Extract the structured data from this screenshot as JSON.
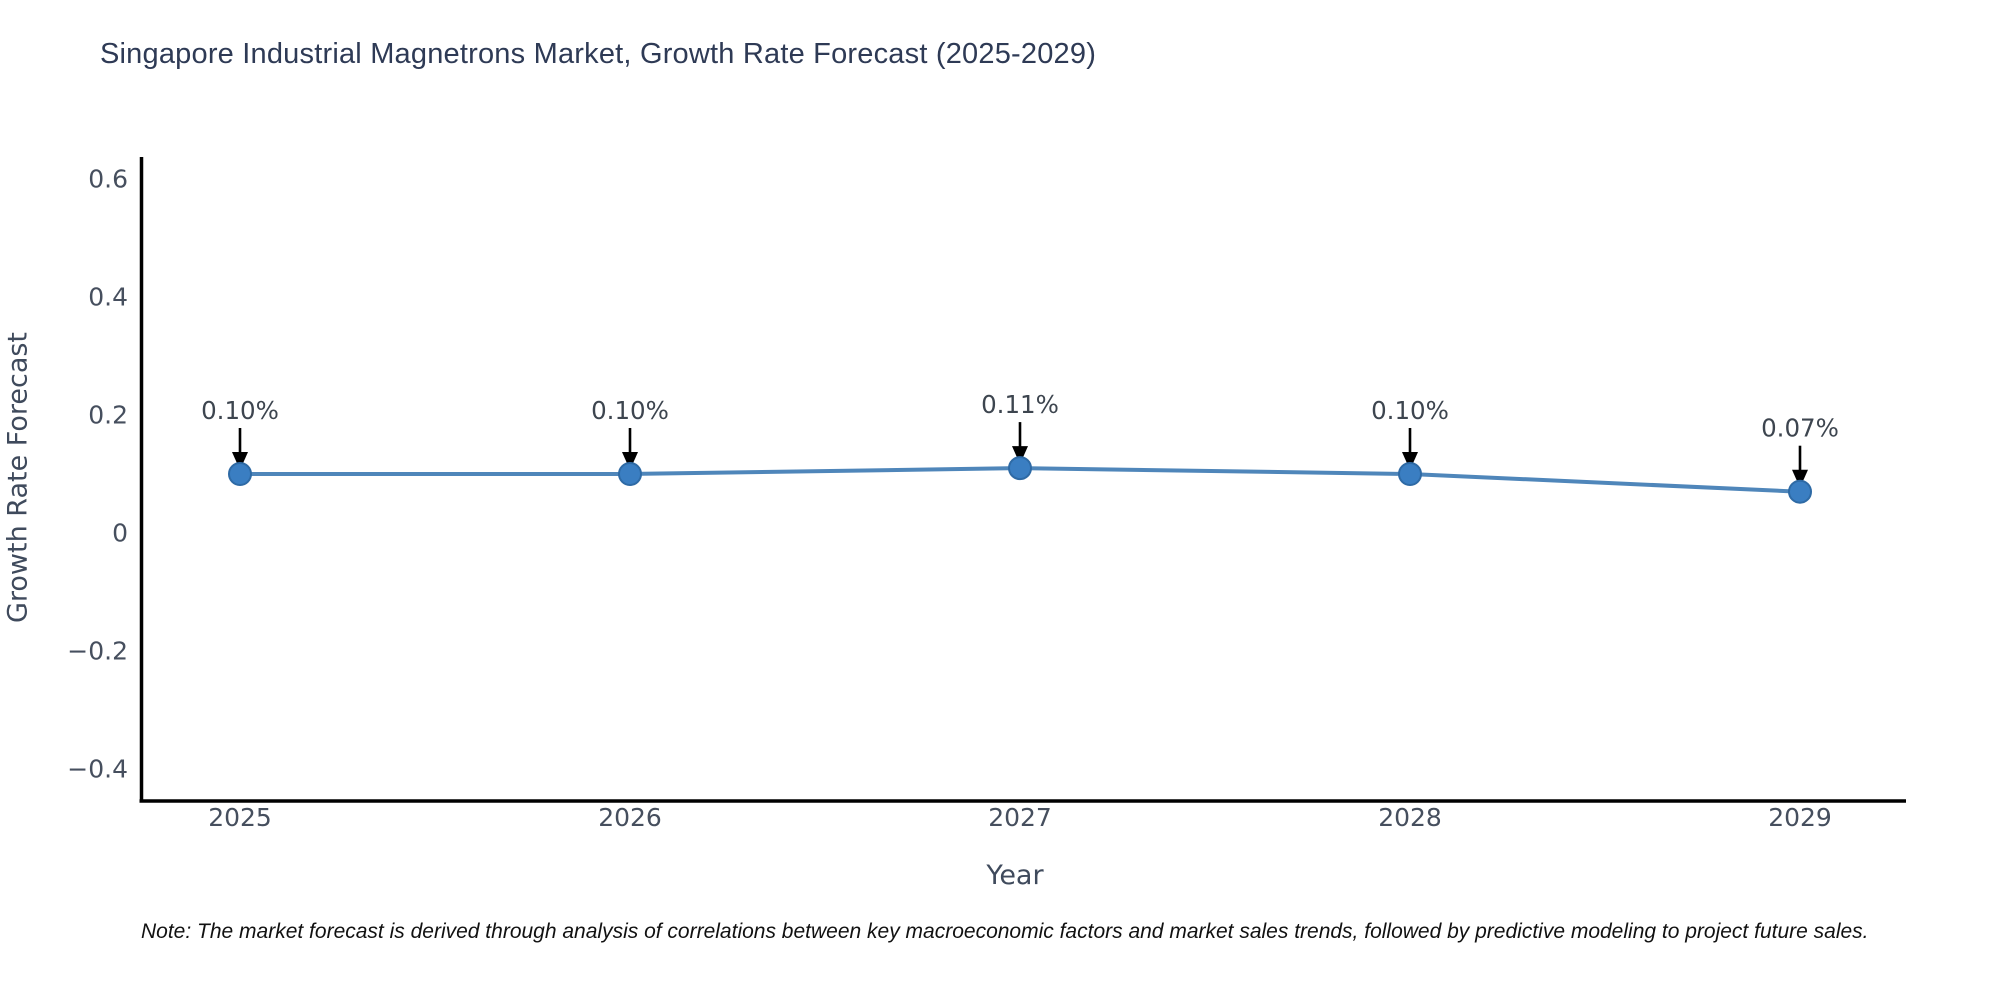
{
  "title": "Singapore Industrial Magnetrons Market, Growth Rate Forecast (2025-2029)",
  "note": "Note: The market forecast is derived through analysis of correlations between key macroeconomic factors and market sales trends, followed by predictive modeling to project future sales.",
  "chart_data": {
    "type": "line",
    "title": "Singapore Industrial Magnetrons Market, Growth Rate Forecast (2025-2029)",
    "xlabel": "Year",
    "ylabel": "Growth Rate Forecast",
    "categories": [
      "2025",
      "2026",
      "2027",
      "2028",
      "2029"
    ],
    "series": [
      {
        "name": "Growth Rate Forecast",
        "values": [
          0.1,
          0.1,
          0.11,
          0.1,
          0.07
        ]
      }
    ],
    "point_labels": [
      "0.10%",
      "0.10%",
      "0.11%",
      "0.10%",
      "0.07%"
    ],
    "yticks": [
      0.6,
      0.4,
      0.2,
      0,
      -0.2,
      -0.4
    ],
    "yticklabels": [
      "0.6",
      "0.4",
      "0.2",
      "0",
      "−0.2",
      "−0.4"
    ],
    "ylim": [
      -0.454,
      0.637
    ],
    "grid": false,
    "legend": "none",
    "annotation_style": "black-down-arrows",
    "colors": {
      "line": "#4f86ba",
      "marker": "#3a7ec2",
      "marker_edge": "#2e6aa5",
      "arrow": "#000000",
      "axis": "#000000",
      "tick_label": "#464f5e",
      "annotation_label": "#3d454f",
      "title": "#2e3a55",
      "note": "#111111"
    }
  }
}
